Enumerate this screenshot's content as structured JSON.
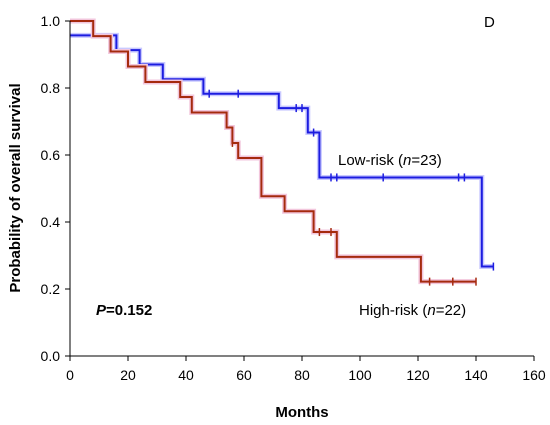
{
  "chart_data": {
    "type": "line",
    "step": true,
    "panel_label": "D",
    "xlabel": "Months",
    "ylabel": "Probability of overall survival",
    "xlim": [
      0,
      160
    ],
    "ylim": [
      0.0,
      1.0
    ],
    "xticks": [
      "0",
      "20",
      "40",
      "60",
      "80",
      "100",
      "120",
      "140",
      "160"
    ],
    "yticks": [
      "0.0",
      "0.2",
      "0.4",
      "0.6",
      "0.8",
      "1.0"
    ],
    "p_value": "P=0.152",
    "series": [
      {
        "label_prefix": "Low-risk (",
        "label_n": "n",
        "label_suffix": "=23)",
        "color": "#1c1ce0",
        "steps": [
          [
            0,
            0.957
          ],
          [
            16,
            0.913
          ],
          [
            24,
            0.87
          ],
          [
            32,
            0.826
          ],
          [
            46,
            0.783
          ],
          [
            72,
            0.74
          ],
          [
            82,
            0.667
          ],
          [
            86,
            0.533
          ],
          [
            142,
            0.267
          ],
          [
            146,
            0.267
          ]
        ],
        "censored": [
          [
            48,
            0.783
          ],
          [
            58,
            0.783
          ],
          [
            78,
            0.74
          ],
          [
            80,
            0.74
          ],
          [
            84,
            0.667
          ],
          [
            90,
            0.533
          ],
          [
            92,
            0.533
          ],
          [
            108,
            0.533
          ],
          [
            134,
            0.533
          ],
          [
            136,
            0.533
          ],
          [
            146,
            0.267
          ]
        ]
      },
      {
        "label_prefix": "High-risk (",
        "label_n": "n",
        "label_suffix": "=22)",
        "color": "#a52a0e",
        "steps": [
          [
            0,
            1.0
          ],
          [
            8,
            0.955
          ],
          [
            14,
            0.909
          ],
          [
            20,
            0.864
          ],
          [
            26,
            0.818
          ],
          [
            38,
            0.773
          ],
          [
            42,
            0.727
          ],
          [
            54,
            0.682
          ],
          [
            56,
            0.636
          ],
          [
            58,
            0.591
          ],
          [
            66,
            0.477
          ],
          [
            74,
            0.432
          ],
          [
            84,
            0.37
          ],
          [
            92,
            0.296
          ],
          [
            121,
            0.222
          ],
          [
            140,
            0.222
          ]
        ],
        "censored": [
          [
            56,
            0.636
          ],
          [
            86,
            0.37
          ],
          [
            90,
            0.37
          ],
          [
            124,
            0.222
          ],
          [
            132,
            0.222
          ],
          [
            140,
            0.222
          ]
        ]
      }
    ]
  }
}
